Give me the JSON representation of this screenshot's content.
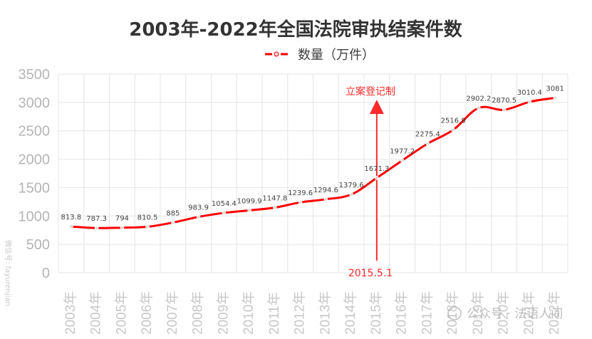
{
  "chart_data": {
    "type": "line",
    "title": "2003年-2022年全国法院审执结案件数",
    "legend": {
      "label": "数量（万件）",
      "placement": "top-center"
    },
    "categories": [
      "2003年",
      "2004年",
      "2005年",
      "2006年",
      "2007年",
      "2008年",
      "2009年",
      "2010年",
      "2011年",
      "2012年",
      "2013年",
      "2014年",
      "2015年",
      "2016年",
      "2017年",
      "2018年",
      "2019年",
      "2020年",
      "2021年",
      "2022年"
    ],
    "series": [
      {
        "name": "数量（万件）",
        "values": [
          813.8,
          787.3,
          794,
          810.5,
          885,
          983.9,
          1054.4,
          1099.9,
          1147.8,
          1239.6,
          1294.6,
          1379.6,
          1671.3,
          1977.2,
          2275.4,
          2516.8,
          2902.2,
          2870.5,
          3010.4,
          3081
        ],
        "labels": [
          "813.8",
          "787.3",
          "794",
          "810.5",
          "885",
          "983.9",
          "1054.4",
          "1099.9",
          "1147.8",
          "1239.6",
          "1294.6",
          "1379.6",
          "1671.3",
          "1977.2",
          "2275.4",
          "2516.8",
          "2902.2",
          "2870.5",
          "3010.4",
          "3081"
        ],
        "color": "#ff0000"
      }
    ],
    "yticks": [
      "0",
      "500",
      "1000",
      "1500",
      "2000",
      "2500",
      "3000",
      "3500"
    ],
    "ylim": [
      0,
      3500
    ],
    "grid": true,
    "annotations": {
      "event_label": "立案登记制",
      "event_date": "2015.5.1",
      "color": "#ff2a2a"
    }
  },
  "watermarks": {
    "bottom_right": "公众号 · 法语人间",
    "left_side": "微信号: fayurenjian"
  }
}
